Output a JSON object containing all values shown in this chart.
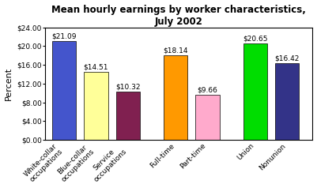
{
  "title": "Mean hourly earnings by worker characteristics,\nJuly 2002",
  "categories": [
    "White-collar\noccupations",
    "Blue-collar\noccupations",
    "Service\noccupations",
    "Full-time",
    "Part-time",
    "Union",
    "Nonunion"
  ],
  "values": [
    21.09,
    14.51,
    10.32,
    18.14,
    9.66,
    20.65,
    16.42
  ],
  "bar_colors": [
    "#4455cc",
    "#ffff99",
    "#802050",
    "#ff9900",
    "#ffaacc",
    "#00dd00",
    "#333388"
  ],
  "ylabel": "Percent",
  "ylim": [
    0,
    24
  ],
  "yticks": [
    0,
    4,
    8,
    12,
    16,
    20,
    24
  ],
  "ytick_labels": [
    "$0.00",
    "$4.00",
    "$8.00",
    "$12.00",
    "$16.00",
    "$20.00",
    "$24.00"
  ],
  "value_labels": [
    "$21.09",
    "$14.51",
    "$10.32",
    "$18.14",
    "$9.66",
    "$20.65",
    "$16.42"
  ],
  "group_positions": [
    0.5,
    1.5,
    2.5,
    4.0,
    5.0,
    6.5,
    7.5
  ],
  "bar_width": 0.75,
  "xlim": [
    -0.1,
    8.3
  ],
  "background_color": "#ffffff",
  "plot_bg": "#ffffff",
  "title_fontsize": 8.5,
  "ylabel_fontsize": 8,
  "tick_fontsize": 6.5,
  "value_fontsize": 6.5
}
